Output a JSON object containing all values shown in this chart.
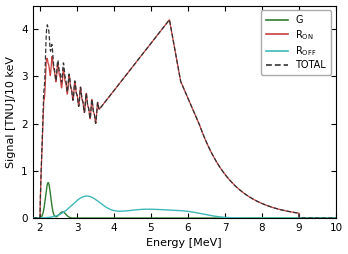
{
  "xlabel": "Energy [MeV]",
  "ylabel": "Signal [TNU]/10 keV",
  "xlim": [
    1.8,
    10
  ],
  "ylim": [
    0,
    4.5
  ],
  "xticks": [
    2,
    3,
    4,
    5,
    6,
    7,
    8,
    9,
    10
  ],
  "yticks": [
    0,
    1,
    2,
    3,
    4
  ],
  "G_color": "#2e7d32",
  "RON_color": "#c94040",
  "ROFF_color": "#40b8b8",
  "TOTAL_color": "#333333",
  "background_color": "#ffffff",
  "figsize": [
    3.48,
    2.54
  ],
  "dpi": 100
}
